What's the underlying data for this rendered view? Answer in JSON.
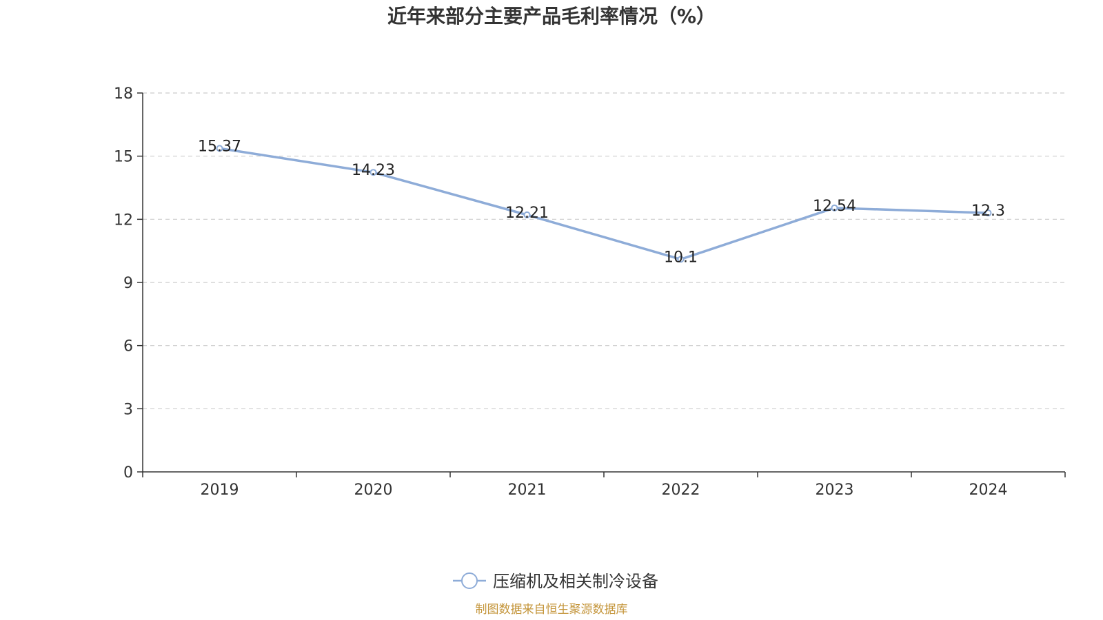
{
  "chart_data": {
    "type": "line",
    "title": "近年来部分主要产品毛利率情况（%）",
    "categories": [
      "2019",
      "2020",
      "2021",
      "2022",
      "2023",
      "2024"
    ],
    "series": [
      {
        "name": "压缩机及相关制冷设备",
        "values": [
          15.37,
          14.23,
          12.21,
          10.1,
          12.54,
          12.3
        ],
        "color": "#8eacd8"
      }
    ],
    "ylim": [
      0,
      18
    ],
    "yticks": [
      0,
      3,
      6,
      9,
      12,
      15,
      18
    ],
    "xlabel": "",
    "ylabel": "",
    "grid": "horizontal-dashed",
    "legend_position": "bottom",
    "data_labels": [
      "15.37",
      "14.23",
      "12.21",
      "10.1",
      "12.54",
      "12.3"
    ]
  },
  "source_note": "制图数据来自恒生聚源数据库",
  "colors": {
    "series_line": "#8eacd8",
    "axis": "#333333",
    "grid": "#cccccc",
    "text": "#333333",
    "source_note": "#c4953a"
  }
}
